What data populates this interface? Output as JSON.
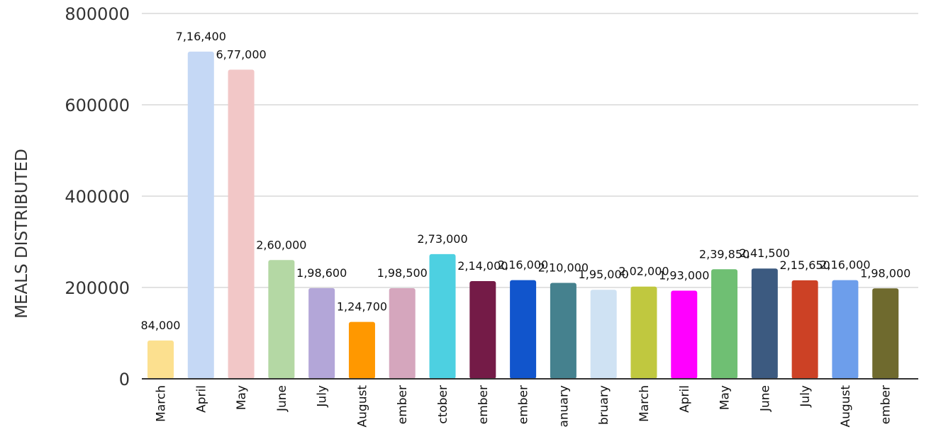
{
  "chart_data": {
    "type": "bar",
    "ylabel": "MEALS DISTRIBUTED",
    "xlabel": "",
    "ylim": [
      0,
      800000
    ],
    "yticks": [
      0,
      200000,
      400000,
      600000,
      800000
    ],
    "grid": true,
    "legend": "none",
    "categories": [
      "March",
      "April",
      "May",
      "June",
      "July",
      "August",
      "ember",
      "ctober",
      "ember",
      "ember",
      "anuary",
      "bruary",
      "March",
      "April",
      "May",
      "June",
      "July",
      "August",
      "ember"
    ],
    "values": [
      84000,
      716400,
      677000,
      260000,
      198600,
      124700,
      198500,
      273000,
      214000,
      216000,
      210000,
      195000,
      202000,
      193000,
      239850,
      241500,
      215650,
      216000,
      198000
    ],
    "data_labels": [
      "84,000",
      "7,16,400",
      "6,77,000",
      "2,60,000",
      "1,98,600",
      "1,24,700",
      "1,98,500",
      "2,73,000",
      "2,14,000",
      "2,16,000",
      "2,10,000",
      "1,95,000",
      "2,02,000",
      "1,93,000",
      "2,39,850",
      "2,41,500",
      "2,15,650",
      "2,16,000",
      "1,98,000"
    ],
    "colors": [
      "#fce08f",
      "#c5d8f5",
      "#f2c7c7",
      "#b4d8a4",
      "#b3a6d8",
      "#ff9800",
      "#d5a6bd",
      "#4dd0e1",
      "#741b47",
      "#1155cc",
      "#45818e",
      "#cfe2f3",
      "#c0c83f",
      "#ff00ff",
      "#6fbf73",
      "#3c5a80",
      "#cc4125",
      "#6d9eeb",
      "#6f6a2e"
    ]
  }
}
